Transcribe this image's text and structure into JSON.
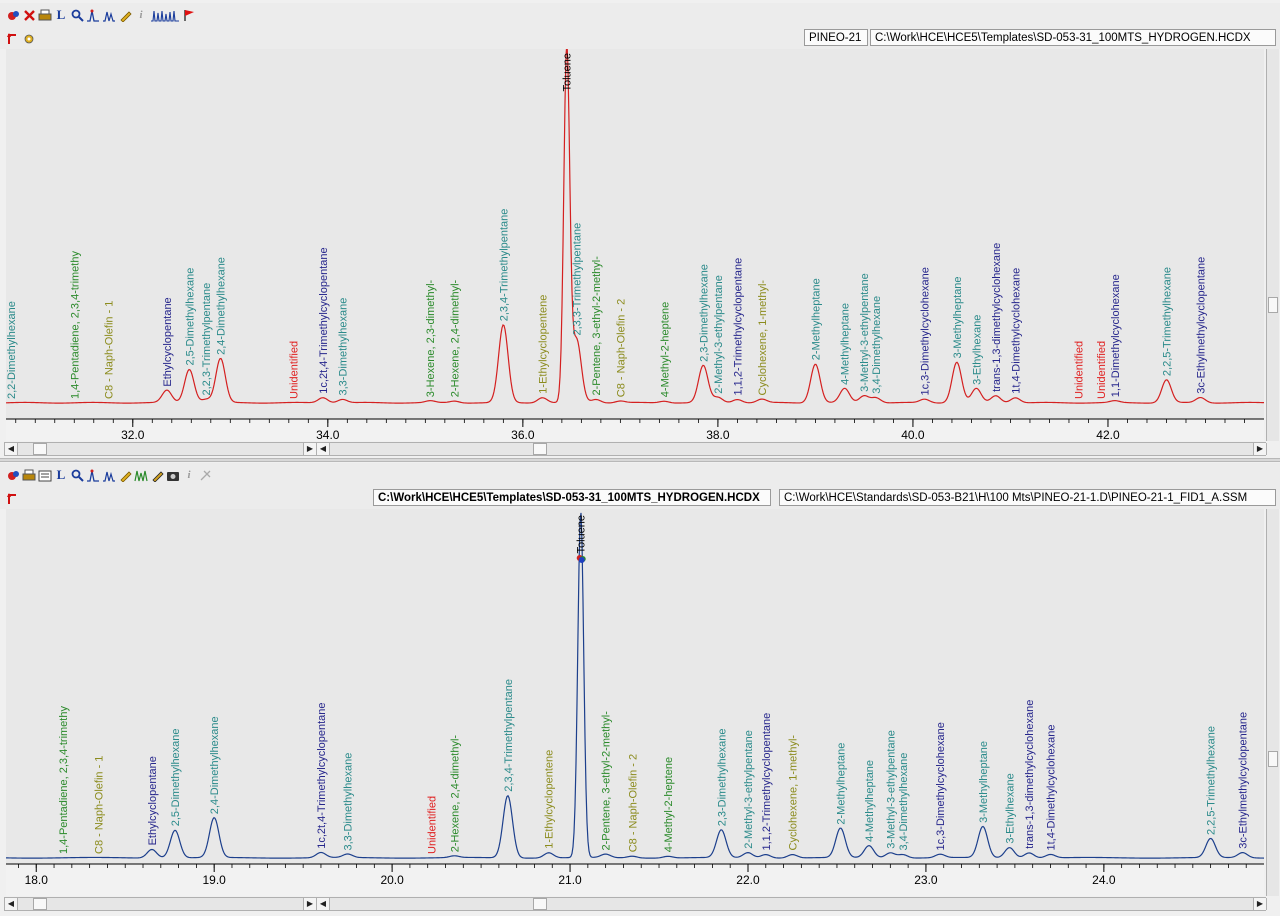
{
  "top_pane": {
    "method_label": "PINEO-21",
    "template_path": "C:\\Work\\HCE\\HCE5\\Templates\\SD-053-31_100MTS_HYDROGEN.HCDX"
  },
  "bottom_pane": {
    "template_path": "C:\\Work\\HCE\\HCE5\\Templates\\SD-053-31_100MTS_HYDROGEN.HCDX",
    "data_path": "C:\\Work\\HCE\\Standards\\SD-053-B21\\H\\100 Mts\\PINEO-21-1.D\\PINEO-21-1_FID1_A.SSM"
  },
  "icons": {
    "toolbar1": [
      "target-icon",
      "delete-icon",
      "print-icon",
      "label-icon",
      "zoom-icon",
      "peak-pick-icon",
      "baseline-icon",
      "pencil-icon",
      "info-icon",
      "multi-peak-icon",
      "flag-icon"
    ],
    "toolbar2": [
      "target-icon",
      "print-icon",
      "calc-icon",
      "label-icon",
      "zoom-icon",
      "peak-pick-icon",
      "baseline-icon",
      "pencil-icon",
      "multi-peak-icon",
      "edit-icon",
      "camera-icon",
      "info-icon",
      "disabled-icon"
    ]
  },
  "colors": {
    "top_trace": "#d42020",
    "bottom_trace": "#1c3f8c",
    "label_teal": "#2a8a8a",
    "label_navy": "#26268c",
    "label_green": "#2a8a2a",
    "label_olive": "#8c8c1e",
    "label_red": "#e02020"
  },
  "chart_data": [
    {
      "type": "line",
      "name": "",
      "xlim": [
        30.7,
        43.6
      ],
      "xticks": [
        "32.0",
        "34.0",
        "36.0",
        "38.0",
        "40.0",
        "42.0"
      ],
      "xtick_values": [
        32.0,
        34.0,
        36.0,
        38.0,
        40.0,
        42.0
      ],
      "ylim": [
        0,
        100
      ],
      "grid": false,
      "peaks": [
        {
          "label": "2,2-Dimethylhexane",
          "x": 30.75,
          "h": 0,
          "color": "teal"
        },
        {
          "label": "1,4-Pentadiene, 2,3,4-trimethy",
          "x": 31.4,
          "h": 0,
          "color": "green"
        },
        {
          "label": "C8 - Naph-Olefin - 1",
          "x": 31.75,
          "h": 0,
          "color": "olive"
        },
        {
          "label": "Ethylcyclopentane",
          "x": 32.35,
          "h": 3.5,
          "color": "navy"
        },
        {
          "label": "2,5-Dimethylhexane",
          "x": 32.58,
          "h": 9.5,
          "color": "teal"
        },
        {
          "label": "2,2,3-Trimethylpentane",
          "x": 32.75,
          "h": 1,
          "color": "teal"
        },
        {
          "label": "2,4-Dimethylhexane",
          "x": 32.9,
          "h": 12.5,
          "color": "teal"
        },
        {
          "label": "Unidentified",
          "x": 33.65,
          "h": 0,
          "color": "red"
        },
        {
          "label": "1c,2t,4-Trimethylcyclopentane",
          "x": 33.95,
          "h": 1.5,
          "color": "navy"
        },
        {
          "label": "3,3-Dimethylhexane",
          "x": 34.15,
          "h": 1,
          "color": "teal"
        },
        {
          "label": "3-Hexene, 2,3-dimethyl-",
          "x": 35.05,
          "h": 0.5,
          "color": "green"
        },
        {
          "label": "2-Hexene, 2,4-dimethyl-",
          "x": 35.3,
          "h": 0.5,
          "color": "green"
        },
        {
          "label": "2,3,4-Trimethylpentane",
          "x": 35.8,
          "h": 22,
          "color": "teal"
        },
        {
          "label": "1-Ethylcyclopentene",
          "x": 36.2,
          "h": 1.5,
          "color": "olive"
        },
        {
          "label": "Toluene",
          "x": 36.45,
          "h": 100,
          "color": "navy"
        },
        {
          "label": "2,3,3-Trimethylpentane",
          "x": 36.55,
          "h": 18,
          "color": "teal"
        },
        {
          "label": "2-Pentene, 3-ethyl-2-methyl-",
          "x": 36.75,
          "h": 1,
          "color": "green"
        },
        {
          "label": "C8 - Naph-Olefin - 2",
          "x": 37.0,
          "h": 0.5,
          "color": "olive"
        },
        {
          "label": "4-Methyl-2-heptene",
          "x": 37.45,
          "h": 0.5,
          "color": "green"
        },
        {
          "label": "2,3-Dimethylhexane",
          "x": 37.85,
          "h": 10.5,
          "color": "teal"
        },
        {
          "label": "2-Methyl-3-ethylpentane",
          "x": 38.0,
          "h": 1.5,
          "color": "teal"
        },
        {
          "label": "1,1,2-Trimethylcyclopentane",
          "x": 38.2,
          "h": 1,
          "color": "navy"
        },
        {
          "label": "Cyclohexene, 1-methyl-",
          "x": 38.45,
          "h": 1,
          "color": "olive"
        },
        {
          "label": "2-Methylheptane",
          "x": 39.0,
          "h": 11,
          "color": "teal"
        },
        {
          "label": "4-Methylheptane",
          "x": 39.3,
          "h": 4,
          "color": "teal"
        },
        {
          "label": "3-Methyl-3-ethylpentane",
          "x": 39.5,
          "h": 2,
          "color": "teal"
        },
        {
          "label": "3,4-Dimethylhexane",
          "x": 39.62,
          "h": 1.5,
          "color": "teal"
        },
        {
          "label": "1c,3-Dimethylcyclohexane",
          "x": 40.12,
          "h": 1,
          "color": "navy"
        },
        {
          "label": "3-Methylheptane",
          "x": 40.45,
          "h": 11.5,
          "color": "teal"
        },
        {
          "label": "3-Ethylhexane",
          "x": 40.65,
          "h": 4,
          "color": "teal"
        },
        {
          "label": "trans-1,3-dimethylcyclohexane",
          "x": 40.85,
          "h": 2,
          "color": "navy"
        },
        {
          "label": "1t,4-Dimethylcyclohexane",
          "x": 41.05,
          "h": 1.5,
          "color": "navy"
        },
        {
          "label": "Unidentified",
          "x": 41.7,
          "h": 0,
          "color": "red"
        },
        {
          "label": "Unidentified",
          "x": 41.93,
          "h": 0,
          "color": "red"
        },
        {
          "label": "1,1-Dimethylcyclohexane",
          "x": 42.07,
          "h": 0.5,
          "color": "navy"
        },
        {
          "label": "2,2,5-Trimethylhexane",
          "x": 42.6,
          "h": 6.5,
          "color": "teal"
        },
        {
          "label": "3c-Ethylmethylcyclopentane",
          "x": 42.95,
          "h": 1.5,
          "color": "navy"
        }
      ]
    },
    {
      "type": "line",
      "name": "",
      "xlim": [
        17.83,
        24.9
      ],
      "xticks": [
        "18.0",
        "19.0",
        "20.0",
        "21.0",
        "22.0",
        "23.0",
        "24.0"
      ],
      "xtick_values": [
        18.0,
        19.0,
        20.0,
        21.0,
        22.0,
        23.0,
        24.0
      ],
      "ylim": [
        0,
        100
      ],
      "grid": false,
      "peaks": [
        {
          "label": "1,4-Pentadiene, 2,3,4-trimethy",
          "x": 18.15,
          "h": 0,
          "color": "green"
        },
        {
          "label": "C8 - Naph-Olefin - 1",
          "x": 18.35,
          "h": 0,
          "color": "olive"
        },
        {
          "label": "Ethylcyclopentane",
          "x": 18.65,
          "h": 2.5,
          "color": "navy"
        },
        {
          "label": "2,5-Dimethylhexane",
          "x": 18.78,
          "h": 8,
          "color": "teal"
        },
        {
          "label": "2,4-Dimethylhexane",
          "x": 19.0,
          "h": 11.5,
          "color": "teal"
        },
        {
          "label": "1c,2t,4-Trimethylcyclopentane",
          "x": 19.6,
          "h": 1.5,
          "color": "navy"
        },
        {
          "label": "3,3-Dimethylhexane",
          "x": 19.75,
          "h": 1,
          "color": "teal"
        },
        {
          "label": "Unidentified",
          "x": 20.22,
          "h": 0,
          "color": "red"
        },
        {
          "label": "2-Hexene, 2,4-dimethyl-",
          "x": 20.35,
          "h": 0.5,
          "color": "green"
        },
        {
          "label": "2,3,4-Trimethylpentane",
          "x": 20.65,
          "h": 18,
          "color": "teal"
        },
        {
          "label": "1-Ethylcyclopentene",
          "x": 20.88,
          "h": 1.5,
          "color": "olive"
        },
        {
          "label": "Toluene",
          "x": 21.06,
          "h": 100,
          "color": "navy"
        },
        {
          "label": "2-Pentene, 3-ethyl-2-methyl-",
          "x": 21.2,
          "h": 1,
          "color": "green"
        },
        {
          "label": "C8 - Naph-Olefin - 2",
          "x": 21.35,
          "h": 0.5,
          "color": "olive"
        },
        {
          "label": "4-Methyl-2-heptene",
          "x": 21.55,
          "h": 0.5,
          "color": "green"
        },
        {
          "label": "2,3-Dimethylhexane",
          "x": 21.85,
          "h": 8,
          "color": "teal"
        },
        {
          "label": "2-Methyl-3-ethylpentane",
          "x": 22.0,
          "h": 1.5,
          "color": "teal"
        },
        {
          "label": "1,1,2-Trimethylcyclopentane",
          "x": 22.1,
          "h": 1,
          "color": "navy"
        },
        {
          "label": "Cyclohexene, 1-methyl-",
          "x": 22.25,
          "h": 1,
          "color": "olive"
        },
        {
          "label": "2-Methylheptane",
          "x": 22.52,
          "h": 8.5,
          "color": "teal"
        },
        {
          "label": "4-Methylheptane",
          "x": 22.68,
          "h": 3.5,
          "color": "teal"
        },
        {
          "label": "3-Methyl-3-ethylpentane",
          "x": 22.8,
          "h": 1.5,
          "color": "teal"
        },
        {
          "label": "3,4-Dimethylhexane",
          "x": 22.87,
          "h": 1,
          "color": "teal"
        },
        {
          "label": "1c,3-Dimethylcyclohexane",
          "x": 23.08,
          "h": 1,
          "color": "navy"
        },
        {
          "label": "3-Methylheptane",
          "x": 23.32,
          "h": 9,
          "color": "teal"
        },
        {
          "label": "3-Ethylhexane",
          "x": 23.47,
          "h": 3,
          "color": "teal"
        },
        {
          "label": "trans-1,3-dimethylcyclohexane",
          "x": 23.58,
          "h": 1.5,
          "color": "navy"
        },
        {
          "label": "1t,4-Dimethylcyclohexane",
          "x": 23.7,
          "h": 1,
          "color": "navy"
        },
        {
          "label": "2,2,5-Trimethylhexane",
          "x": 24.6,
          "h": 5.5,
          "color": "teal"
        },
        {
          "label": "3c-Ethylmethylcyclopentane",
          "x": 24.78,
          "h": 1.5,
          "color": "navy"
        }
      ]
    }
  ]
}
